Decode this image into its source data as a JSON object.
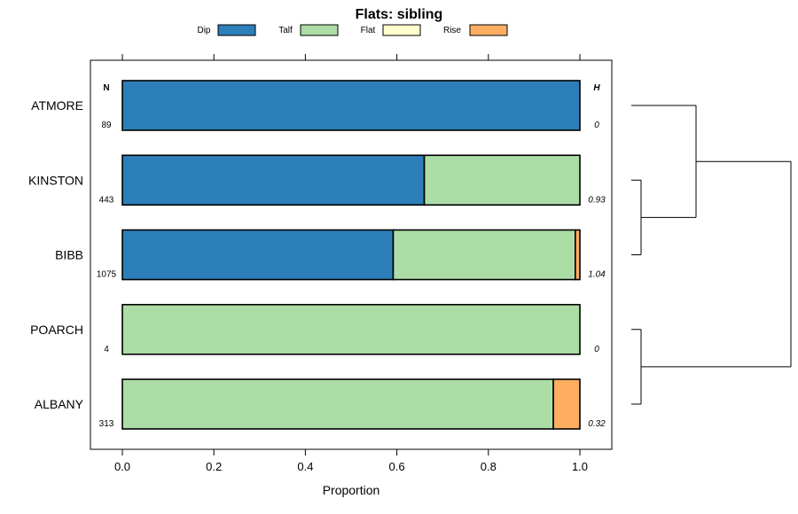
{
  "chart_data": {
    "type": "bar",
    "orientation": "horizontal",
    "stacked": true,
    "title": "Flats: sibling",
    "xlabel": "Proportion",
    "xlim": [
      0,
      1
    ],
    "xticks": [
      "0.0",
      "0.2",
      "0.4",
      "0.6",
      "0.8",
      "1.0"
    ],
    "legend_position": "top",
    "grid": false,
    "n_header": "N",
    "h_header": "H",
    "series": [
      {
        "name": "Dip",
        "color": "#2c7fb8"
      },
      {
        "name": "Talf",
        "color": "#addda6"
      },
      {
        "name": "Flat",
        "color": "#ffffcc"
      },
      {
        "name": "Rise",
        "color": "#fdae61"
      }
    ],
    "categories": [
      "ATMORE",
      "KINSTON",
      "BIBB",
      "POARCH",
      "ALBANY"
    ],
    "rows": [
      {
        "label": "ATMORE",
        "n": "89",
        "h": "0",
        "values": [
          1.0,
          0.0,
          0.0,
          0.0
        ]
      },
      {
        "label": "KINSTON",
        "n": "443",
        "h": "0.93",
        "values": [
          0.66,
          0.34,
          0.0,
          0.0
        ]
      },
      {
        "label": "BIBB",
        "n": "1075",
        "h": "1.04",
        "values": [
          0.592,
          0.398,
          0.0,
          0.01
        ]
      },
      {
        "label": "POARCH",
        "n": "4",
        "h": "0",
        "values": [
          0.0,
          1.0,
          0.0,
          0.0
        ]
      },
      {
        "label": "ALBANY",
        "n": "313",
        "h": "0.32",
        "values": [
          0.0,
          0.942,
          0.0,
          0.058
        ]
      }
    ],
    "dendrogram": {
      "merges": [
        {
          "a": "KINSTON",
          "b": "BIBB"
        },
        {
          "a": "ATMORE",
          "b": "KINSTON+BIBB"
        },
        {
          "a": "POARCH",
          "b": "ALBANY"
        },
        {
          "a": "ATMORE+KINSTON+BIBB",
          "b": "POARCH+ALBANY"
        }
      ]
    }
  }
}
